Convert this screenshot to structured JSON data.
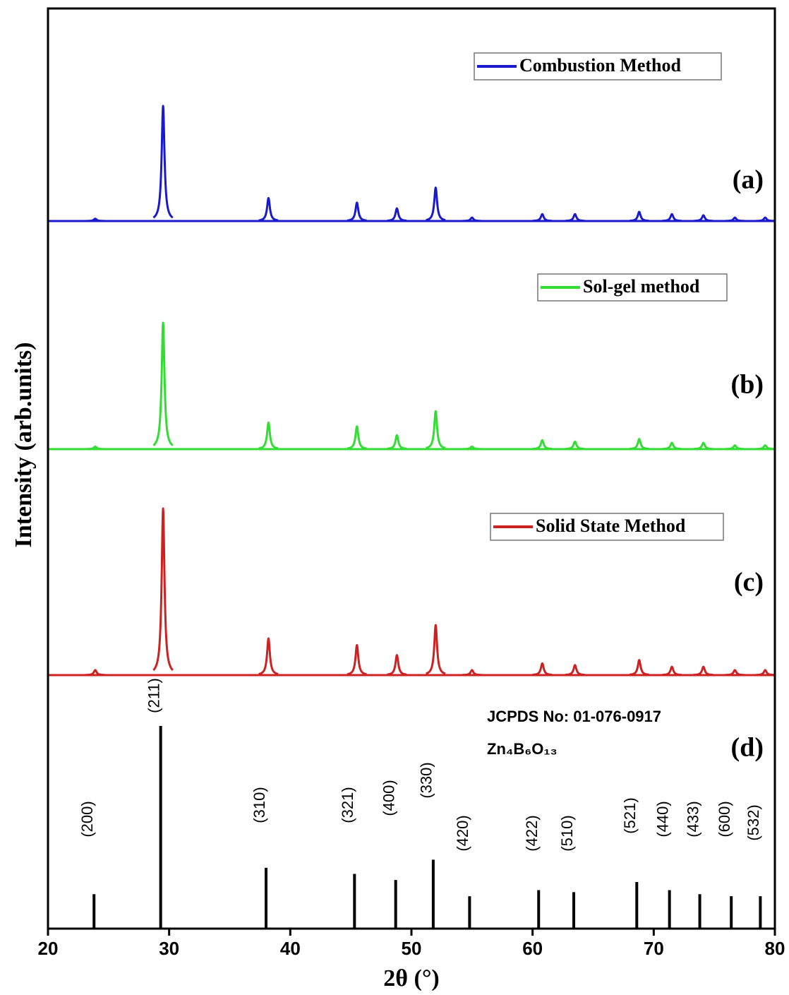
{
  "chart_data": {
    "type": "xrd",
    "x_label": "2θ (°)",
    "y_label": "Intensity (arb.units)",
    "xlim": [
      20,
      80
    ],
    "xticks": [
      20,
      30,
      40,
      50,
      60,
      70,
      80
    ],
    "series": [
      {
        "name": "Combustion Method",
        "label": "(a)",
        "color": "#1a1acd",
        "x": [
          23.9,
          29.5,
          38.2,
          45.5,
          48.8,
          52.0,
          55.0,
          60.8,
          63.5,
          68.8,
          71.5,
          74.1,
          76.7,
          79.2
        ],
        "values": [
          2,
          100,
          20,
          16,
          11,
          29,
          3,
          6,
          6,
          8,
          6,
          5,
          3,
          3
        ]
      },
      {
        "name": "Sol-gel method",
        "label": "(b)",
        "color": "#33dd33",
        "x": [
          23.9,
          29.5,
          38.2,
          45.5,
          48.8,
          52.0,
          55.0,
          60.8,
          63.5,
          68.8,
          71.5,
          74.1,
          76.7,
          79.2
        ],
        "values": [
          2,
          100,
          21,
          18,
          11,
          30,
          2,
          7,
          6,
          8,
          5,
          5,
          3,
          3
        ]
      },
      {
        "name": "Solid State Method",
        "label": "(c)",
        "color": "#cc2222",
        "x": [
          23.9,
          29.5,
          38.2,
          45.5,
          48.8,
          52.0,
          55.0,
          60.8,
          63.5,
          68.8,
          71.5,
          74.1,
          76.7,
          79.2
        ],
        "values": [
          3,
          100,
          22,
          18,
          12,
          30,
          3,
          7,
          6,
          9,
          5,
          5,
          3,
          3
        ]
      }
    ],
    "reference": {
      "name": "JCPDS No: 01-076-0917",
      "formula": "Zn₄B₆O₁₃",
      "label": "(d)",
      "color": "#000000",
      "x": [
        23.8,
        29.3,
        38.0,
        45.3,
        48.7,
        51.8,
        54.8,
        60.5,
        63.4,
        68.6,
        71.3,
        73.8,
        76.4,
        78.8
      ],
      "values": [
        17,
        100,
        30,
        27,
        24,
        34,
        16,
        19,
        18,
        23,
        19,
        17,
        16,
        16
      ],
      "hkl": [
        "(200)",
        "(211)",
        "(310)",
        "(321)",
        "(400)",
        "(330)",
        "(420)",
        "(422)",
        "(510)",
        "(521)",
        "(440)",
        "(433)",
        "(600)",
        "(532)"
      ]
    }
  }
}
